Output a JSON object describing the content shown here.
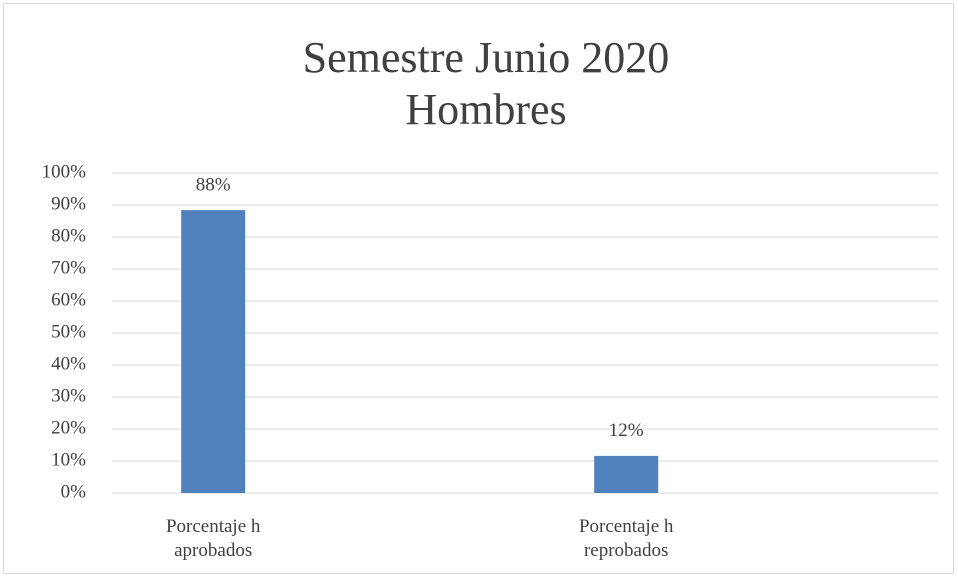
{
  "chart_data": {
    "type": "bar",
    "title": [
      "Semestre Junio 2020",
      "Hombres"
    ],
    "categories": [
      "Porcentaje h aprobados",
      "Porcentaje h reprobados"
    ],
    "values": [
      88.4,
      11.6
    ],
    "value_labels": [
      "88%",
      "12%"
    ],
    "color": "#4f81bd",
    "ylim": [
      0,
      100
    ],
    "yticks": [
      {
        "value": 0,
        "label": "0%"
      },
      {
        "value": 10,
        "label": "10%"
      },
      {
        "value": 20,
        "label": "20%"
      },
      {
        "value": 30,
        "label": "30%"
      },
      {
        "value": 40,
        "label": "40%"
      },
      {
        "value": 50,
        "label": "50%"
      },
      {
        "value": 60,
        "label": "60%"
      },
      {
        "value": 70,
        "label": "70%"
      },
      {
        "value": 80,
        "label": "80%"
      },
      {
        "value": 90,
        "label": "90%"
      },
      {
        "value": 100,
        "label": "100%"
      }
    ],
    "grid": true
  }
}
